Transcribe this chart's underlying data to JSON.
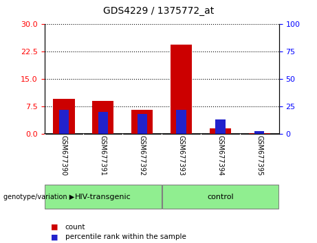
{
  "title": "GDS4229 / 1375772_at",
  "samples": [
    "GSM677390",
    "GSM677391",
    "GSM677392",
    "GSM677393",
    "GSM677394",
    "GSM677395"
  ],
  "count_values": [
    9.5,
    9.0,
    6.5,
    24.5,
    1.5,
    0.15
  ],
  "percentile_values": [
    22.0,
    20.0,
    18.0,
    22.0,
    13.0,
    2.5
  ],
  "left_ylim": [
    0,
    30
  ],
  "right_ylim": [
    0,
    100
  ],
  "left_yticks": [
    0,
    7.5,
    15,
    22.5,
    30
  ],
  "right_yticks": [
    0,
    25,
    50,
    75,
    100
  ],
  "groups": [
    {
      "label": "HIV-transgenic",
      "start": 0,
      "end": 3,
      "color": "#90EE90"
    },
    {
      "label": "control",
      "start": 3,
      "end": 6,
      "color": "#90EE90"
    }
  ],
  "group_label": "genotype/variation",
  "bar_color_red": "#CC0000",
  "bar_color_blue": "#2222CC",
  "bar_width": 0.55,
  "blue_bar_width": 0.25,
  "grid_color": "black",
  "grid_linestyle": "dotted",
  "background_xtick": "#C8C8C8",
  "legend_items": [
    "count",
    "percentile rank within the sample"
  ],
  "title_fontsize": 10,
  "tick_fontsize": 8,
  "sample_fontsize": 7,
  "group_fontsize": 8,
  "legend_fontsize": 7.5
}
